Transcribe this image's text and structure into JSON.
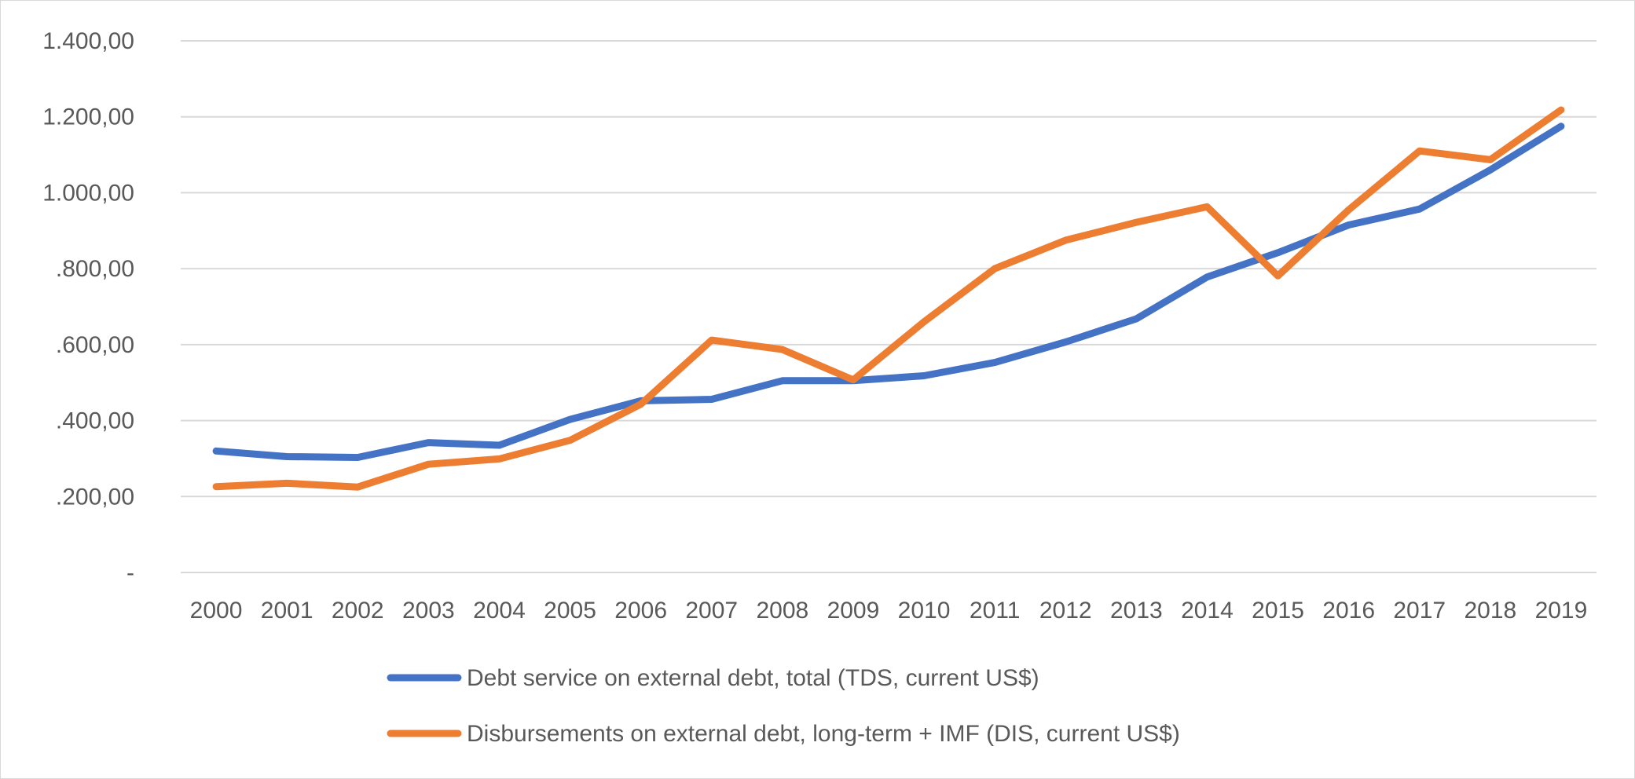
{
  "chart_data": {
    "type": "line",
    "title": "",
    "xlabel": "",
    "ylabel": "",
    "categories": [
      "2000",
      "2001",
      "2002",
      "2003",
      "2004",
      "2005",
      "2006",
      "2007",
      "2008",
      "2009",
      "2010",
      "2011",
      "2012",
      "2013",
      "2014",
      "2015",
      "2016",
      "2017",
      "2018",
      "2019"
    ],
    "ylim": [
      0,
      1400
    ],
    "y_ticks": [
      0,
      200,
      400,
      600,
      800,
      1000,
      1200,
      1400
    ],
    "y_tick_labels": [
      "-",
      ".200,00",
      ".400,00",
      ".600,00",
      ".800,00",
      "1.000,00",
      "1.200,00",
      "1.400,00"
    ],
    "grid": "horizontal",
    "legend_position": "bottom",
    "series": [
      {
        "name": "Debt service on external debt, total (TDS, current US$)",
        "color": "#4472C4",
        "values": [
          320,
          305,
          303,
          342,
          335,
          403,
          452,
          456,
          505,
          505,
          518,
          553,
          607,
          668,
          778,
          842,
          915,
          957,
          1060,
          1175
        ]
      },
      {
        "name": "Disbursements on external debt, long-term + IMF (DIS, current US$)",
        "color": "#ED7D31",
        "values": [
          226,
          235,
          225,
          285,
          299,
          348,
          443,
          612,
          587,
          507,
          660,
          800,
          875,
          922,
          963,
          781,
          955,
          1110,
          1087,
          1218
        ]
      }
    ]
  }
}
